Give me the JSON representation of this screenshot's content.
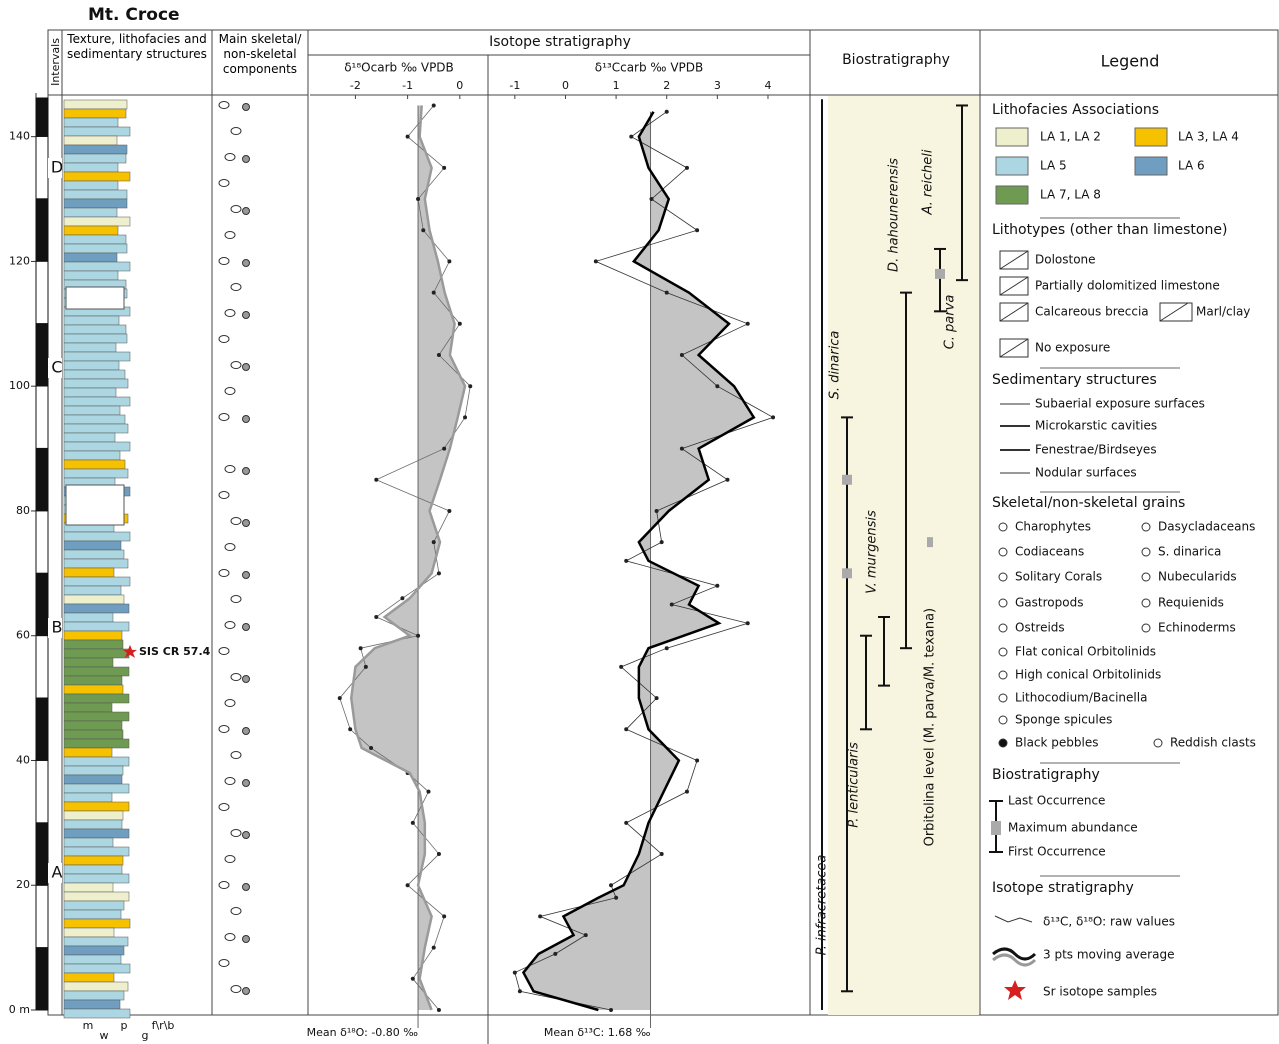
{
  "header": {
    "title": "Mt. Croce"
  },
  "columns": {
    "intervals": "Intervals",
    "texture": "Texture, lithofacies and sedimentary structures",
    "components": "Main skeletal/ non-skeletal components",
    "isotopes": "Isotope stratigraphy",
    "biostratigraphy": "Biostratigraphy",
    "legend": "Legend"
  },
  "intervals": [
    "A",
    "B",
    "C",
    "D"
  ],
  "texture_scale": [
    "m",
    "w",
    "p",
    "g",
    "f\\r\\b"
  ],
  "sr_sample": {
    "label": "SIS CR 57.4",
    "height": 57.4
  },
  "chart_data": [
    {
      "type": "line",
      "xlabel": "δ¹⁸Ocarb ‰ VPDB",
      "xlim": [
        -2.87,
        0.54
      ],
      "xticks": [
        -2,
        -1,
        0
      ],
      "ylim": [
        0,
        147
      ],
      "yticks": [
        {
          "value": 0,
          "label": "0 m"
        },
        20,
        40,
        60,
        80,
        100,
        120,
        140
      ],
      "mean": -0.8,
      "mean_label": "Mean δ¹⁸O: -0.80 ‰",
      "fill_color": "#c4c4c4",
      "y": [
        0,
        5,
        10,
        15,
        20,
        25,
        30,
        35,
        38,
        42,
        45,
        50,
        55,
        58,
        60,
        63,
        66,
        70,
        75,
        80,
        85,
        90,
        95,
        100,
        105,
        110,
        115,
        120,
        125,
        130,
        135,
        140,
        145
      ],
      "series": [
        {
          "style": "raw",
          "color": "#6a6a6a",
          "values": [
            -0.4,
            -0.9,
            -0.5,
            -0.3,
            -1.0,
            -0.4,
            -0.9,
            -0.6,
            -1.0,
            -1.7,
            -2.1,
            -2.3,
            -1.8,
            -1.9,
            -0.8,
            -1.6,
            -1.1,
            -0.4,
            -0.5,
            -0.2,
            -1.6,
            -0.3,
            0.1,
            0.2,
            -0.4,
            0.0,
            -0.5,
            -0.2,
            -0.7,
            -0.8,
            -0.3,
            -1.0,
            -0.5
          ]
        },
        {
          "style": "average",
          "color": "#9a9a9a",
          "values": [
            -0.54,
            -0.77,
            -0.67,
            -0.54,
            -0.8,
            -0.67,
            -0.67,
            -0.77,
            -0.96,
            -1.88,
            -2.0,
            -2.08,
            -2.0,
            -1.63,
            -0.96,
            -1.44,
            -0.96,
            -0.54,
            -0.38,
            -0.58,
            -0.38,
            -0.19,
            -0.04,
            0.1,
            -0.19,
            -0.1,
            -0.29,
            -0.42,
            -0.58,
            -0.67,
            -0.54,
            -0.77,
            -0.73
          ]
        }
      ]
    },
    {
      "type": "line",
      "xlabel": "δ¹³Ccarb ‰ VPDB",
      "xlim": [
        -1.53,
        4.83
      ],
      "xticks": [
        -1,
        0,
        1,
        2,
        3,
        4
      ],
      "ylim": [
        0,
        147
      ],
      "mean": 1.68,
      "mean_label": "Mean δ¹³C: 1.68 ‰",
      "fill_color": "#c4c4c4",
      "y": [
        0,
        3,
        6,
        9,
        12,
        15,
        18,
        20,
        25,
        30,
        35,
        40,
        45,
        50,
        55,
        58,
        62,
        65,
        68,
        72,
        75,
        80,
        85,
        90,
        95,
        100,
        105,
        110,
        115,
        120,
        125,
        130,
        135,
        140,
        144
      ],
      "series": [
        {
          "style": "raw",
          "color": "#333333",
          "values": [
            0.9,
            -0.9,
            -1.0,
            -0.2,
            0.4,
            -0.5,
            1.0,
            0.9,
            1.9,
            1.2,
            2.4,
            2.6,
            1.2,
            1.8,
            1.1,
            2.0,
            3.6,
            2.1,
            3.0,
            1.2,
            1.9,
            1.8,
            3.2,
            2.3,
            4.1,
            3.0,
            2.3,
            3.6,
            2.0,
            0.6,
            2.6,
            1.7,
            2.4,
            1.3,
            2.0
          ]
        },
        {
          "style": "average",
          "color": "#000000",
          "values": [
            0.65,
            -0.63,
            -0.83,
            -0.53,
            0.16,
            -0.04,
            0.65,
            1.15,
            1.45,
            1.64,
            1.94,
            2.24,
            1.64,
            1.45,
            1.45,
            1.64,
            3.03,
            2.44,
            2.63,
            1.64,
            1.45,
            2.04,
            2.83,
            2.63,
            3.72,
            3.33,
            2.63,
            3.23,
            2.44,
            1.35,
            1.84,
            2.04,
            1.64,
            1.45,
            1.74
          ]
        }
      ]
    }
  ],
  "biostratigraphy": {
    "background": "#f7f4df",
    "taxa": [
      {
        "name": "P. infracretacea",
        "first": 0,
        "last": 146,
        "max": []
      },
      {
        "name": "S. dinarica",
        "first": 3,
        "last": 95,
        "max": [
          70,
          85
        ]
      },
      {
        "name": "P. lenticularis",
        "first": 45,
        "last": 60,
        "max": []
      },
      {
        "name": "V. murgensis",
        "first": 52,
        "last": 63,
        "max": []
      },
      {
        "name": "D. hahounerensis",
        "first": 58,
        "last": 115,
        "max": []
      },
      {
        "name": "A. reicheli",
        "first": 112,
        "last": 122,
        "max": [
          118
        ]
      },
      {
        "name": "C. parva",
        "first": 117,
        "last": 145,
        "max": []
      }
    ],
    "level": {
      "name": "Orbitolina level (M. parva/M. texana)",
      "height": 75
    }
  },
  "legend": {
    "lithofacies": {
      "title": "Lithofacies Associations",
      "items": [
        {
          "label": "LA 1, LA 2",
          "color": "#eeefcc"
        },
        {
          "label": "LA 3, LA 4",
          "color": "#f6c200"
        },
        {
          "label": "LA 5",
          "color": "#acd6e2"
        },
        {
          "label": "LA 6",
          "color": "#6f9ec0"
        },
        {
          "label": "LA 7, LA 8",
          "color": "#6f9a52"
        }
      ]
    },
    "lithotypes": {
      "title": "Lithotypes (other than limestone)",
      "items": [
        "Dolostone",
        "Partially dolomitized limestone",
        "Calcareous breccia",
        "Marl/clay",
        "No exposure"
      ]
    },
    "structures": {
      "title": "Sedimentary structures",
      "items": [
        "Subaerial exposure surfaces",
        "Microkarstic cavities",
        "Fenestrae/Birdseyes",
        "Nodular surfaces"
      ]
    },
    "grains": {
      "title": "Skeletal/non-skeletal grains",
      "items": [
        "Charophytes",
        "Dasycladaceans",
        "Codiaceans",
        "S. dinarica",
        "Solitary Corals",
        "Nubecularids",
        "Gastropods",
        "Requienids",
        "Ostreids",
        "Echinoderms",
        "Flat conical Orbitolinids",
        "High conical Orbitolinids",
        "Lithocodium/Bacinella",
        "Sponge spicules",
        "Black pebbles",
        "Reddish clasts"
      ]
    },
    "biostrat": {
      "title": "Biostratigraphy",
      "items": [
        "Last Occurrence",
        "Maximum abundance",
        "First Occurrence"
      ]
    },
    "isotope": {
      "title": "Isotope stratigraphy",
      "items": [
        "δ¹³C, δ¹⁸O: raw values",
        "3 pts moving average",
        "Sr isotope samples"
      ]
    }
  }
}
